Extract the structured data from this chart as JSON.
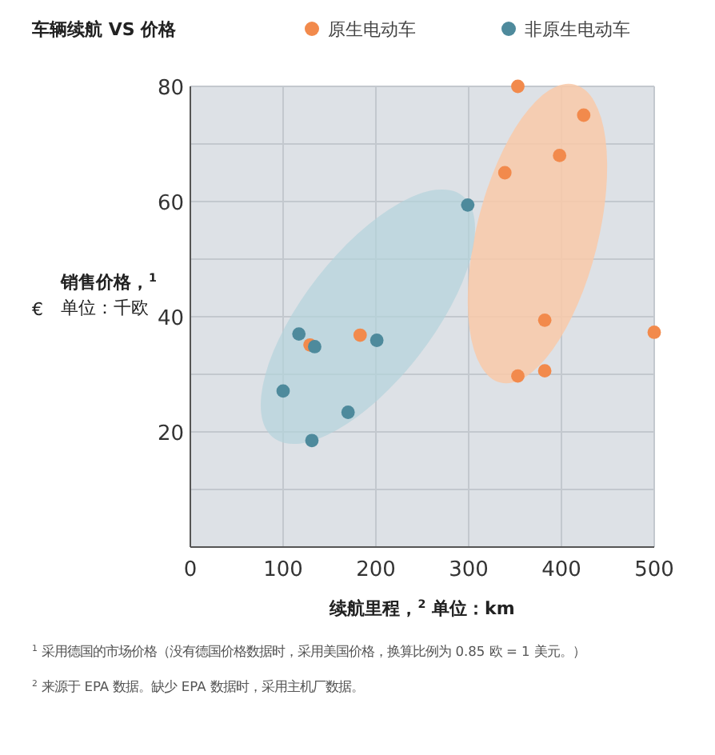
{
  "chart_data": {
    "type": "scatter",
    "title": "车辆续航 VS 价格",
    "xlabel": "续航里程，$^{2}$ 单位：km",
    "ylabel": "销售价格，$^{1}$ 单位：千欧",
    "annotations": [
      "€",
      "$^{1}$ 采用德国的市场价格（没有德国价格数据时，采用美国价格，换算比例为 0.85 欧 = 1 美元。）",
      "$^{2}$ 来源于 EPA 数据。缺少 EPA 数据时，采用主机厂数据。"
    ],
    "xlim": [
      0,
      500
    ],
    "xticks": [
      0,
      100,
      200,
      300,
      400,
      500
    ],
    "ylim": [
      0,
      80
    ],
    "yticks": [
      {
        "value": 10,
        "label": null
      },
      20,
      {
        "value": 30,
        "label": null
      },
      40,
      {
        "value": 50,
        "label": null
      },
      60,
      {
        "value": 70,
        "label": null
      },
      80
    ],
    "grid": true,
    "legend": "top",
    "marker": "circle",
    "series": [
      {
        "name": "原生电动车",
        "color": "#f28a4c",
        "x": [
          353,
          424,
          339,
          398,
          382,
          500,
          353,
          382,
          183,
          129
        ],
        "values": [
          80,
          75,
          65,
          68,
          39.4,
          37.3,
          29.7,
          30.6,
          36.8,
          35.1
        ]
      },
      {
        "name": "非原生电动车",
        "color": "#4e8a9c",
        "x": [
          299,
          117,
          134,
          201,
          100,
          170,
          131
        ],
        "values": [
          59.4,
          37,
          34.8,
          35.9,
          27.1,
          23.4,
          18.5
        ]
      }
    ]
  }
}
